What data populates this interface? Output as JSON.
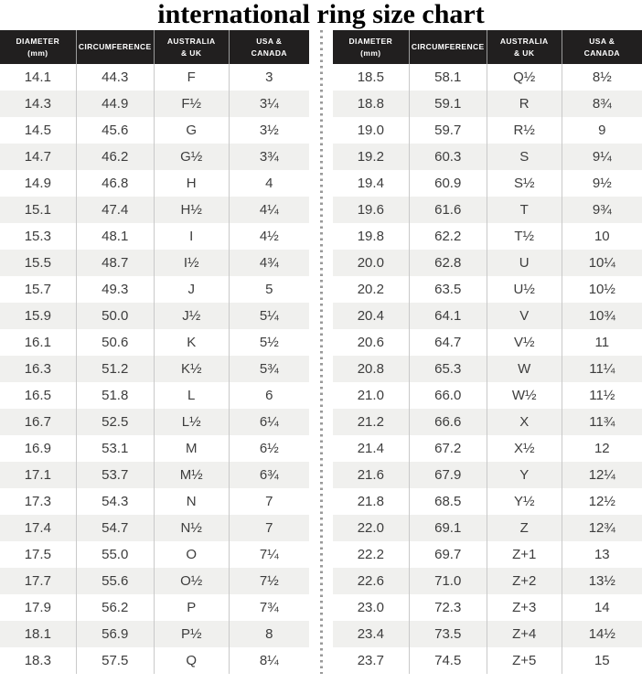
{
  "title": "international ring size chart",
  "table_headers": [
    "DIAMETER\n(mm)",
    "CIRCUMFERENCE",
    "AUSTRALIA\n& UK",
    "USA &\nCANADA"
  ],
  "colors": {
    "header_bg": "#211f1f",
    "header_text": "#ffffff",
    "row_stripe": "#f0f0ee",
    "body_text": "#3d3d3d",
    "column_divider": "#c9c9c9",
    "dotted_divider": "#9a9a9a",
    "title_text": "#000000"
  },
  "chart_data": {
    "type": "table",
    "title": "international ring size chart",
    "columns": [
      "Diameter (mm)",
      "Circumference",
      "Australia & UK",
      "USA & Canada"
    ],
    "layout": "two side-by-side tables separated by a vertical dotted line; dark header row; alternating white/light-gray body rows",
    "tables": [
      {
        "name": "left",
        "rows": [
          [
            "14.1",
            "44.3",
            "F",
            "3"
          ],
          [
            "14.3",
            "44.9",
            "F½",
            "3¼"
          ],
          [
            "14.5",
            "45.6",
            "G",
            "3½"
          ],
          [
            "14.7",
            "46.2",
            "G½",
            "3¾"
          ],
          [
            "14.9",
            "46.8",
            "H",
            "4"
          ],
          [
            "15.1",
            "47.4",
            "H½",
            "4¼"
          ],
          [
            "15.3",
            "48.1",
            "I",
            "4½"
          ],
          [
            "15.5",
            "48.7",
            "I½",
            "4¾"
          ],
          [
            "15.7",
            "49.3",
            "J",
            "5"
          ],
          [
            "15.9",
            "50.0",
            "J½",
            "5¼"
          ],
          [
            "16.1",
            "50.6",
            "K",
            "5½"
          ],
          [
            "16.3",
            "51.2",
            "K½",
            "5¾"
          ],
          [
            "16.5",
            "51.8",
            "L",
            "6"
          ],
          [
            "16.7",
            "52.5",
            "L½",
            "6¼"
          ],
          [
            "16.9",
            "53.1",
            "M",
            "6½"
          ],
          [
            "17.1",
            "53.7",
            "M½",
            "6¾"
          ],
          [
            "17.3",
            "54.3",
            "N",
            "7"
          ],
          [
            "17.4",
            "54.7",
            "N½",
            "7"
          ],
          [
            "17.5",
            "55.0",
            "O",
            "7¼"
          ],
          [
            "17.7",
            "55.6",
            "O½",
            "7½"
          ],
          [
            "17.9",
            "56.2",
            "P",
            "7¾"
          ],
          [
            "18.1",
            "56.9",
            "P½",
            "8"
          ],
          [
            "18.3",
            "57.5",
            "Q",
            "8¼"
          ]
        ]
      },
      {
        "name": "right",
        "rows": [
          [
            "18.5",
            "58.1",
            "Q½",
            "8½"
          ],
          [
            "18.8",
            "59.1",
            "R",
            "8¾"
          ],
          [
            "19.0",
            "59.7",
            "R½",
            "9"
          ],
          [
            "19.2",
            "60.3",
            "S",
            "9¼"
          ],
          [
            "19.4",
            "60.9",
            "S½",
            "9½"
          ],
          [
            "19.6",
            "61.6",
            "T",
            "9¾"
          ],
          [
            "19.8",
            "62.2",
            "T½",
            "10"
          ],
          [
            "20.0",
            "62.8",
            "U",
            "10¼"
          ],
          [
            "20.2",
            "63.5",
            "U½",
            "10½"
          ],
          [
            "20.4",
            "64.1",
            "V",
            "10¾"
          ],
          [
            "20.6",
            "64.7",
            "V½",
            "11"
          ],
          [
            "20.8",
            "65.3",
            "W",
            "11¼"
          ],
          [
            "21.0",
            "66.0",
            "W½",
            "11½"
          ],
          [
            "21.2",
            "66.6",
            "X",
            "11¾"
          ],
          [
            "21.4",
            "67.2",
            "X½",
            "12"
          ],
          [
            "21.6",
            "67.9",
            "Y",
            "12¼"
          ],
          [
            "21.8",
            "68.5",
            "Y½",
            "12½"
          ],
          [
            "22.0",
            "69.1",
            "Z",
            "12¾"
          ],
          [
            "22.2",
            "69.7",
            "Z+1",
            "13"
          ],
          [
            "22.6",
            "71.0",
            "Z+2",
            "13½"
          ],
          [
            "23.0",
            "72.3",
            "Z+3",
            "14"
          ],
          [
            "23.4",
            "73.5",
            "Z+4",
            "14½"
          ],
          [
            "23.7",
            "74.5",
            "Z+5",
            "15"
          ]
        ]
      }
    ]
  }
}
